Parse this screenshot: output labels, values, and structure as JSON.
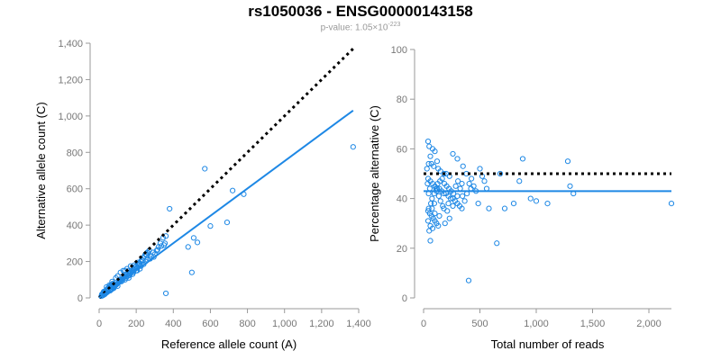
{
  "header": {
    "title": "rs1050036 - ENSG00000143158",
    "pvalue_prefix": "p-value: 1.05×10",
    "pvalue_exponent": "-223"
  },
  "chart_data": [
    {
      "type": "scatter",
      "xlabel": "Reference allele count (A)",
      "ylabel": "Alternative allele count (C)",
      "xlim": [
        0,
        1400
      ],
      "ylim": [
        0,
        1400
      ],
      "xticks": [
        0,
        200,
        400,
        600,
        800,
        1000,
        1200,
        1400
      ],
      "xtick_labels": [
        "0",
        "200",
        "400",
        "600",
        "800",
        "1,000",
        "1,200",
        "1,400"
      ],
      "yticks": [
        0,
        200,
        400,
        600,
        800,
        1000,
        1200,
        1400
      ],
      "ytick_labels": [
        "0",
        "200",
        "400",
        "600",
        "800",
        "1,000",
        "1,200",
        "1,400"
      ],
      "grid": false,
      "point_color": "#1e88e5",
      "fit_line": {
        "x": [
          0,
          1370
        ],
        "y": [
          0,
          1030
        ],
        "color": "#1e88e5"
      },
      "reference_line": {
        "x": [
          0,
          1370
        ],
        "y": [
          0,
          1370
        ],
        "style": "dotted",
        "color": "#000000"
      },
      "points": [
        [
          12,
          10
        ],
        [
          15,
          20
        ],
        [
          18,
          12
        ],
        [
          20,
          25
        ],
        [
          22,
          15
        ],
        [
          25,
          30
        ],
        [
          28,
          18
        ],
        [
          30,
          35
        ],
        [
          32,
          22
        ],
        [
          35,
          40
        ],
        [
          38,
          28
        ],
        [
          40,
          45
        ],
        [
          42,
          30
        ],
        [
          45,
          50
        ],
        [
          48,
          35
        ],
        [
          50,
          55
        ],
        [
          52,
          38
        ],
        [
          55,
          60
        ],
        [
          58,
          42
        ],
        [
          60,
          65
        ],
        [
          62,
          45
        ],
        [
          65,
          70
        ],
        [
          68,
          48
        ],
        [
          70,
          75
        ],
        [
          72,
          50
        ],
        [
          75,
          80
        ],
        [
          78,
          55
        ],
        [
          80,
          60
        ],
        [
          85,
          65
        ],
        [
          90,
          70
        ],
        [
          95,
          75
        ],
        [
          100,
          80
        ],
        [
          105,
          85
        ],
        [
          110,
          90
        ],
        [
          115,
          95
        ],
        [
          120,
          100
        ],
        [
          125,
          105
        ],
        [
          130,
          110
        ],
        [
          135,
          115
        ],
        [
          140,
          120
        ],
        [
          145,
          125
        ],
        [
          150,
          130
        ],
        [
          155,
          120
        ],
        [
          160,
          125
        ],
        [
          165,
          135
        ],
        [
          170,
          140
        ],
        [
          175,
          150
        ],
        [
          180,
          145
        ],
        [
          185,
          155
        ],
        [
          190,
          160
        ],
        [
          195,
          170
        ],
        [
          200,
          175
        ],
        [
          205,
          165
        ],
        [
          210,
          180
        ],
        [
          215,
          185
        ],
        [
          220,
          190
        ],
        [
          225,
          200
        ],
        [
          230,
          210
        ],
        [
          235,
          205
        ],
        [
          240,
          220
        ],
        [
          245,
          230
        ],
        [
          250,
          240
        ],
        [
          255,
          235
        ],
        [
          260,
          250
        ],
        [
          265,
          245
        ],
        [
          270,
          260
        ],
        [
          280,
          230
        ],
        [
          290,
          250
        ],
        [
          300,
          240
        ],
        [
          310,
          260
        ],
        [
          320,
          280
        ],
        [
          330,
          300
        ],
        [
          345,
          330
        ],
        [
          350,
          290
        ],
        [
          360,
          340
        ],
        [
          380,
          490
        ],
        [
          360,
          25
        ],
        [
          480,
          280
        ],
        [
          500,
          140
        ],
        [
          510,
          330
        ],
        [
          530,
          305
        ],
        [
          570,
          710
        ],
        [
          600,
          395
        ],
        [
          690,
          415
        ],
        [
          720,
          590
        ],
        [
          780,
          570
        ],
        [
          1370,
          830
        ],
        [
          60,
          40
        ],
        [
          80,
          55
        ],
        [
          100,
          65
        ],
        [
          120,
          90
        ],
        [
          140,
          100
        ],
        [
          160,
          110
        ],
        [
          180,
          130
        ],
        [
          200,
          150
        ],
        [
          220,
          160
        ],
        [
          240,
          185
        ],
        [
          260,
          210
        ],
        [
          100,
          120
        ],
        [
          130,
          150
        ],
        [
          150,
          160
        ],
        [
          170,
          175
        ],
        [
          40,
          60
        ],
        [
          55,
          70
        ],
        [
          70,
          90
        ],
        [
          35,
          25
        ],
        [
          45,
          35
        ],
        [
          65,
          50
        ],
        [
          85,
          75
        ],
        [
          110,
          100
        ],
        [
          125,
          95
        ],
        [
          145,
          110
        ],
        [
          165,
          125
        ],
        [
          185,
          140
        ],
        [
          205,
          150
        ],
        [
          225,
          175
        ],
        [
          250,
          200
        ],
        [
          275,
          215
        ],
        [
          295,
          225
        ],
        [
          315,
          265
        ],
        [
          335,
          285
        ],
        [
          355,
          300
        ],
        [
          90,
          110
        ],
        [
          115,
          140
        ],
        [
          140,
          150
        ],
        [
          160,
          150
        ],
        [
          190,
          180
        ],
        [
          210,
          195
        ],
        [
          25,
          35
        ],
        [
          30,
          20
        ]
      ]
    },
    {
      "type": "scatter",
      "xlabel": "Total number of reads",
      "ylabel": "Percentage alternative (C)",
      "xlim": [
        0,
        2200
      ],
      "ylim": [
        0,
        100
      ],
      "xticks": [
        0,
        500,
        1000,
        1500,
        2000
      ],
      "xtick_labels": [
        "0",
        "500",
        "1,000",
        "1,500",
        "2,000"
      ],
      "yticks": [
        0,
        20,
        40,
        60,
        80,
        100
      ],
      "ytick_labels": [
        "0",
        "20",
        "40",
        "60",
        "80",
        "100"
      ],
      "grid": false,
      "point_color": "#1e88e5",
      "fit_line": {
        "x": [
          0,
          2200
        ],
        "y": [
          43,
          43
        ],
        "color": "#1e88e5"
      },
      "reference_line": {
        "x": [
          0,
          2200
        ],
        "y": [
          50,
          50
        ],
        "style": "dotted",
        "color": "#000000"
      },
      "points": [
        [
          40,
          63
        ],
        [
          50,
          61
        ],
        [
          80,
          60
        ],
        [
          100,
          59
        ],
        [
          60,
          57
        ],
        [
          120,
          55
        ],
        [
          45,
          54
        ],
        [
          70,
          54
        ],
        [
          90,
          53
        ],
        [
          130,
          52
        ],
        [
          150,
          51
        ],
        [
          180,
          50
        ],
        [
          200,
          50
        ],
        [
          230,
          49
        ],
        [
          40,
          48
        ],
        [
          60,
          47
        ],
        [
          80,
          46
        ],
        [
          100,
          45
        ],
        [
          120,
          44
        ],
        [
          140,
          44
        ],
        [
          160,
          43
        ],
        [
          180,
          42
        ],
        [
          200,
          42
        ],
        [
          220,
          41
        ],
        [
          240,
          40
        ],
        [
          260,
          40
        ],
        [
          280,
          39
        ],
        [
          300,
          38
        ],
        [
          320,
          37
        ],
        [
          340,
          36
        ],
        [
          40,
          35
        ],
        [
          55,
          34
        ],
        [
          70,
          33
        ],
        [
          85,
          32
        ],
        [
          100,
          31
        ],
        [
          115,
          30
        ],
        [
          130,
          29
        ],
        [
          50,
          27
        ],
        [
          60,
          23
        ],
        [
          45,
          36
        ],
        [
          65,
          38
        ],
        [
          75,
          40
        ],
        [
          95,
          42
        ],
        [
          110,
          44
        ],
        [
          125,
          46
        ],
        [
          145,
          47
        ],
        [
          165,
          48
        ],
        [
          185,
          46
        ],
        [
          205,
          45
        ],
        [
          225,
          44
        ],
        [
          245,
          43
        ],
        [
          265,
          42
        ],
        [
          285,
          45
        ],
        [
          305,
          47
        ],
        [
          325,
          44
        ],
        [
          345,
          41
        ],
        [
          365,
          39
        ],
        [
          385,
          42
        ],
        [
          405,
          46
        ],
        [
          425,
          48
        ],
        [
          445,
          45
        ],
        [
          465,
          43
        ],
        [
          485,
          38
        ],
        [
          500,
          52
        ],
        [
          520,
          49
        ],
        [
          540,
          47
        ],
        [
          560,
          44
        ],
        [
          580,
          36
        ],
        [
          650,
          22
        ],
        [
          680,
          50
        ],
        [
          720,
          36
        ],
        [
          800,
          38
        ],
        [
          850,
          47
        ],
        [
          880,
          56
        ],
        [
          950,
          40
        ],
        [
          1000,
          39
        ],
        [
          1100,
          38
        ],
        [
          1280,
          55
        ],
        [
          1300,
          45
        ],
        [
          1330,
          42
        ],
        [
          2200,
          38
        ],
        [
          400,
          7
        ],
        [
          260,
          58
        ],
        [
          300,
          56
        ],
        [
          350,
          53
        ],
        [
          210,
          35
        ],
        [
          230,
          32
        ],
        [
          190,
          30
        ],
        [
          170,
          37
        ],
        [
          150,
          39
        ],
        [
          135,
          41
        ],
        [
          115,
          43
        ],
        [
          95,
          38
        ],
        [
          75,
          36
        ],
        [
          55,
          44
        ],
        [
          45,
          42
        ],
        [
          35,
          46
        ],
        [
          30,
          52
        ],
        [
          40,
          31
        ],
        [
          60,
          29
        ],
        [
          80,
          28
        ],
        [
          100,
          34
        ],
        [
          140,
          33
        ],
        [
          180,
          36
        ],
        [
          220,
          38
        ],
        [
          260,
          37
        ],
        [
          300,
          41
        ],
        [
          340,
          46
        ],
        [
          380,
          50
        ],
        [
          420,
          44
        ]
      ]
    }
  ]
}
